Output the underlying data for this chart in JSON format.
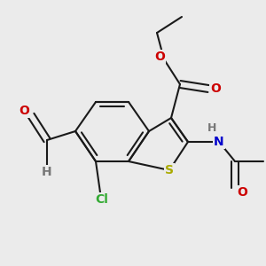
{
  "bg_color": "#ebebeb",
  "bond_color": "#1a1a1a",
  "bond_width": 1.5,
  "atom_colors": {
    "O": "#cc0000",
    "N": "#0000cc",
    "S": "#aaaa00",
    "Cl": "#33aa33",
    "H": "#777777",
    "C": "#1a1a1a"
  },
  "font_size": 9.5,
  "fig_size": 3.0,
  "dpi": 100
}
